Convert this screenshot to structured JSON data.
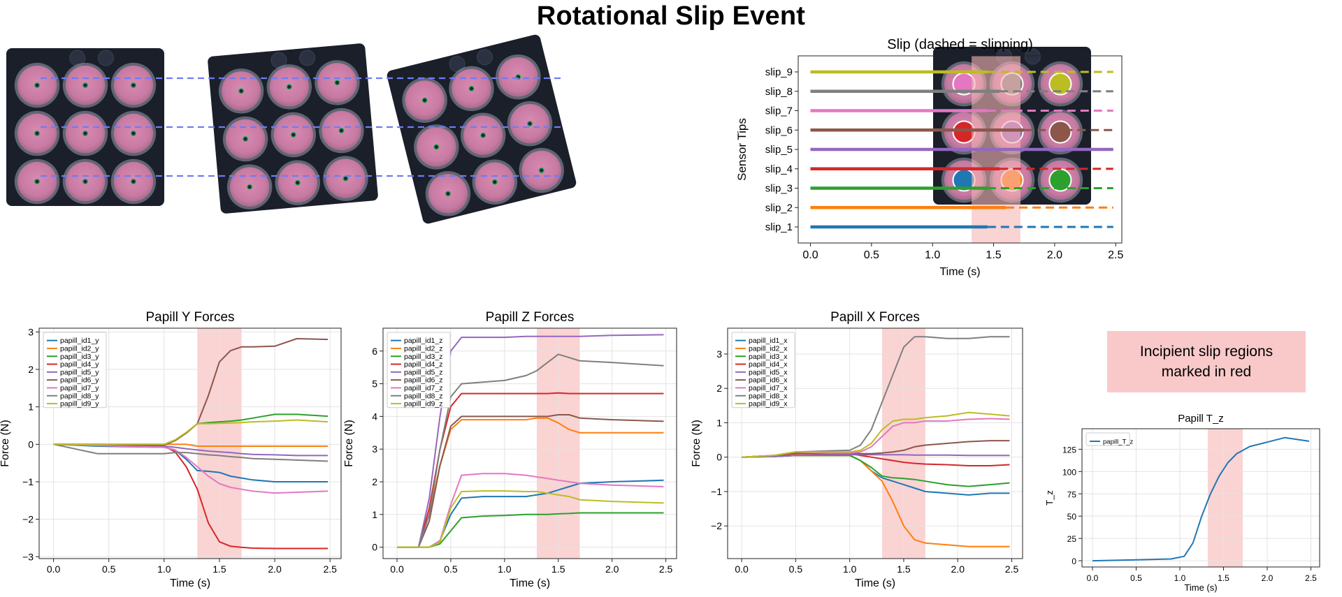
{
  "title": "Rotational Slip Event",
  "callout": {
    "line1": "Incipient slip regions",
    "line2": "marked in red"
  },
  "colors": {
    "tab": [
      "#1f77b4",
      "#ff7f0e",
      "#2ca02c",
      "#d62728",
      "#9467bd",
      "#8c564b",
      "#e377c2",
      "#7f7f7f",
      "#bcbd22"
    ],
    "slip_span": "#f7b5b5",
    "dashed_guide": "#6d7cf5",
    "pad": "#cf7ea6",
    "board": "#1a1f2a"
  },
  "chart_data": [
    {
      "id": "slip",
      "type": "line",
      "title": "Slip (dashed = slipping)",
      "xlabel": "Time (s)",
      "ylabel": "Sensor Tips",
      "xlim": [
        -0.1,
        2.55
      ],
      "xticks": [
        0.0,
        0.5,
        1.0,
        1.5,
        2.0,
        2.5
      ],
      "xtick_labels": [
        "0.0",
        "0.5",
        "1.0",
        "1.5",
        "2.0",
        "2.5"
      ],
      "categories": [
        "slip_1",
        "slip_2",
        "slip_3",
        "slip_4",
        "slip_5",
        "slip_6",
        "slip_7",
        "slip_8",
        "slip_9"
      ],
      "slip_start": [
        1.45,
        1.6,
        1.45,
        1.55,
        null,
        1.75,
        1.45,
        1.55,
        1.45
      ],
      "x_end": 2.48,
      "span": [
        1.32,
        1.72
      ],
      "grid": false
    },
    {
      "id": "fy",
      "type": "line",
      "title": "Papill Y Forces",
      "xlabel": "Time (s)",
      "ylabel": "Force (N)",
      "xlim": [
        -0.13,
        2.6
      ],
      "ylim": [
        -3.05,
        3.1
      ],
      "xticks": [
        0.0,
        0.5,
        1.0,
        1.5,
        2.0,
        2.5
      ],
      "xtick_labels": [
        "0.0",
        "0.5",
        "1.0",
        "1.5",
        "2.0",
        "2.5"
      ],
      "yticks": [
        -3,
        -2,
        -1,
        0,
        1,
        2,
        3
      ],
      "ytick_labels": [
        "−3",
        "−2",
        "−1",
        "0",
        "1",
        "2",
        "3"
      ],
      "span": [
        1.3,
        1.7
      ],
      "grid": true,
      "legend": "upper-left",
      "x": [
        0.0,
        0.4,
        1.0,
        1.1,
        1.2,
        1.3,
        1.4,
        1.5,
        1.6,
        1.7,
        1.8,
        2.0,
        2.2,
        2.48
      ],
      "series": [
        {
          "name": "papill_id1_y",
          "values": [
            0,
            -0.05,
            -0.08,
            -0.15,
            -0.4,
            -0.7,
            -0.72,
            -0.75,
            -0.85,
            -0.9,
            -0.95,
            -1.0,
            -1.0,
            -1.0
          ]
        },
        {
          "name": "papill_id2_y",
          "values": [
            0,
            0.0,
            0.0,
            0.0,
            0.0,
            -0.05,
            -0.05,
            -0.05,
            -0.05,
            -0.05,
            -0.05,
            -0.05,
            -0.05,
            -0.05
          ]
        },
        {
          "name": "papill_id3_y",
          "values": [
            0,
            0.0,
            -0.02,
            0.1,
            0.3,
            0.55,
            0.58,
            0.6,
            0.62,
            0.65,
            0.7,
            0.8,
            0.8,
            0.75
          ]
        },
        {
          "name": "papill_id4_y",
          "values": [
            0,
            -0.02,
            -0.05,
            -0.2,
            -0.6,
            -1.2,
            -2.1,
            -2.6,
            -2.72,
            -2.75,
            -2.77,
            -2.78,
            -2.78,
            -2.78
          ]
        },
        {
          "name": "papill_id5_y",
          "values": [
            0,
            -0.02,
            -0.05,
            -0.08,
            -0.12,
            -0.15,
            -0.18,
            -0.2,
            -0.22,
            -0.25,
            -0.27,
            -0.28,
            -0.3,
            -0.3
          ]
        },
        {
          "name": "papill_id6_y",
          "values": [
            0,
            -0.02,
            -0.02,
            0.1,
            0.3,
            0.55,
            1.3,
            2.2,
            2.5,
            2.6,
            2.6,
            2.62,
            2.82,
            2.8
          ]
        },
        {
          "name": "papill_id7_y",
          "values": [
            0,
            -0.03,
            -0.08,
            -0.15,
            -0.35,
            -0.6,
            -0.85,
            -1.05,
            -1.15,
            -1.2,
            -1.25,
            -1.3,
            -1.28,
            -1.25
          ]
        },
        {
          "name": "papill_id8_y",
          "values": [
            0,
            -0.25,
            -0.25,
            -0.22,
            -0.22,
            -0.25,
            -0.28,
            -0.3,
            -0.33,
            -0.35,
            -0.38,
            -0.4,
            -0.42,
            -0.45
          ]
        },
        {
          "name": "papill_id9_y",
          "values": [
            0,
            0.0,
            0.0,
            0.12,
            0.32,
            0.55,
            0.55,
            0.56,
            0.57,
            0.58,
            0.6,
            0.62,
            0.65,
            0.6
          ]
        }
      ]
    },
    {
      "id": "fz",
      "type": "line",
      "title": "Papill Z Forces",
      "xlabel": "Time (s)",
      "ylabel": "Force (N)",
      "xlim": [
        -0.13,
        2.6
      ],
      "ylim": [
        -0.35,
        6.7
      ],
      "xticks": [
        0.0,
        0.5,
        1.0,
        1.5,
        2.0,
        2.5
      ],
      "xtick_labels": [
        "0.0",
        "0.5",
        "1.0",
        "1.5",
        "2.0",
        "2.5"
      ],
      "yticks": [
        0,
        1,
        2,
        3,
        4,
        5,
        6
      ],
      "ytick_labels": [
        "0",
        "1",
        "2",
        "3",
        "4",
        "5",
        "6"
      ],
      "span": [
        1.3,
        1.7
      ],
      "grid": true,
      "legend": "upper-left",
      "x": [
        0.0,
        0.2,
        0.3,
        0.4,
        0.5,
        0.6,
        0.8,
        1.0,
        1.2,
        1.3,
        1.4,
        1.5,
        1.6,
        1.7,
        2.0,
        2.48
      ],
      "series": [
        {
          "name": "papill_id1_z",
          "values": [
            0,
            0,
            0,
            0.2,
            1.0,
            1.5,
            1.55,
            1.55,
            1.55,
            1.6,
            1.65,
            1.75,
            1.85,
            1.95,
            2.0,
            2.05
          ]
        },
        {
          "name": "papill_id2_z",
          "values": [
            0,
            0,
            1.0,
            2.5,
            3.6,
            3.9,
            3.9,
            3.9,
            3.9,
            3.95,
            3.95,
            3.8,
            3.6,
            3.5,
            3.5,
            3.5
          ]
        },
        {
          "name": "papill_id3_z",
          "values": [
            0,
            0,
            0,
            0.1,
            0.5,
            0.9,
            0.95,
            0.97,
            1.0,
            1.0,
            1.0,
            1.02,
            1.03,
            1.05,
            1.05,
            1.05
          ]
        },
        {
          "name": "papill_id4_z",
          "values": [
            0,
            0,
            1.2,
            3.0,
            4.3,
            4.7,
            4.7,
            4.7,
            4.7,
            4.7,
            4.7,
            4.72,
            4.7,
            4.7,
            4.7,
            4.7
          ]
        },
        {
          "name": "papill_id5_z",
          "values": [
            0,
            0,
            1.5,
            4.0,
            6.0,
            6.42,
            6.42,
            6.42,
            6.45,
            6.45,
            6.45,
            6.45,
            6.45,
            6.45,
            6.48,
            6.5
          ]
        },
        {
          "name": "papill_id6_z",
          "values": [
            0,
            0,
            0.8,
            2.5,
            3.7,
            4.0,
            4.0,
            4.0,
            4.0,
            4.0,
            4.0,
            4.05,
            4.05,
            3.95,
            3.9,
            3.85
          ]
        },
        {
          "name": "papill_id7_z",
          "values": [
            0,
            0,
            0,
            0.2,
            1.3,
            2.2,
            2.25,
            2.25,
            2.2,
            2.15,
            2.1,
            2.05,
            2.0,
            1.95,
            1.9,
            1.85
          ]
        },
        {
          "name": "papill_id8_z",
          "values": [
            0,
            0,
            1.0,
            3.0,
            4.6,
            5.0,
            5.05,
            5.1,
            5.25,
            5.4,
            5.65,
            5.9,
            5.8,
            5.7,
            5.65,
            5.55
          ]
        },
        {
          "name": "papill_id9_z",
          "values": [
            0,
            0,
            0,
            0.15,
            1.2,
            1.7,
            1.72,
            1.72,
            1.7,
            1.7,
            1.65,
            1.6,
            1.55,
            1.45,
            1.4,
            1.35
          ]
        }
      ]
    },
    {
      "id": "fx",
      "type": "line",
      "title": "Papill X Forces",
      "xlabel": "Time (s)",
      "ylabel": "Force (N)",
      "xlim": [
        -0.13,
        2.6
      ],
      "ylim": [
        -2.95,
        3.75
      ],
      "xticks": [
        0.0,
        0.5,
        1.0,
        1.5,
        2.0,
        2.5
      ],
      "xtick_labels": [
        "0.0",
        "0.5",
        "1.0",
        "1.5",
        "2.0",
        "2.5"
      ],
      "yticks": [
        -2,
        -1,
        0,
        1,
        2,
        3
      ],
      "ytick_labels": [
        "−2",
        "−1",
        "0",
        "1",
        "2",
        "3"
      ],
      "span": [
        1.3,
        1.7
      ],
      "grid": true,
      "legend": "upper-left",
      "x": [
        0.0,
        0.3,
        0.5,
        0.8,
        1.0,
        1.1,
        1.2,
        1.3,
        1.4,
        1.5,
        1.6,
        1.7,
        1.9,
        2.1,
        2.3,
        2.48
      ],
      "series": [
        {
          "name": "papill_id1_x",
          "values": [
            0,
            0.02,
            0.05,
            0.05,
            0.05,
            -0.1,
            -0.4,
            -0.6,
            -0.7,
            -0.8,
            -0.9,
            -1.0,
            -1.05,
            -1.1,
            -1.05,
            -1.05
          ]
        },
        {
          "name": "papill_id2_x",
          "values": [
            0,
            0.02,
            0.05,
            0.05,
            0.05,
            -0.1,
            -0.4,
            -0.7,
            -1.3,
            -2.0,
            -2.4,
            -2.5,
            -2.55,
            -2.6,
            -2.6,
            -2.6
          ]
        },
        {
          "name": "papill_id3_x",
          "values": [
            0,
            0.02,
            0.05,
            0.05,
            0.05,
            -0.1,
            -0.3,
            -0.55,
            -0.6,
            -0.62,
            -0.65,
            -0.7,
            -0.8,
            -0.85,
            -0.8,
            -0.75
          ]
        },
        {
          "name": "papill_id4_x",
          "values": [
            0,
            0.05,
            0.1,
            0.1,
            0.1,
            0.05,
            0.0,
            -0.05,
            -0.1,
            -0.15,
            -0.18,
            -0.2,
            -0.22,
            -0.25,
            -0.25,
            -0.22
          ]
        },
        {
          "name": "papill_id5_x",
          "values": [
            0,
            0.02,
            0.05,
            0.07,
            0.07,
            0.07,
            0.07,
            0.07,
            0.07,
            0.07,
            0.06,
            0.06,
            0.06,
            0.05,
            0.05,
            0.05
          ]
        },
        {
          "name": "papill_id6_x",
          "values": [
            0,
            0.05,
            0.12,
            0.12,
            0.12,
            0.1,
            0.1,
            0.12,
            0.15,
            0.2,
            0.3,
            0.35,
            0.4,
            0.45,
            0.48,
            0.48
          ]
        },
        {
          "name": "papill_id7_x",
          "values": [
            0,
            0.05,
            0.15,
            0.12,
            0.12,
            0.15,
            0.3,
            0.6,
            0.9,
            1.0,
            1.0,
            1.05,
            1.05,
            1.1,
            1.12,
            1.1
          ]
        },
        {
          "name": "papill_id8_x",
          "values": [
            0,
            0.05,
            0.15,
            0.18,
            0.2,
            0.35,
            0.8,
            1.6,
            2.4,
            3.2,
            3.5,
            3.5,
            3.45,
            3.45,
            3.5,
            3.5
          ]
        },
        {
          "name": "papill_id9_x",
          "values": [
            0,
            0.05,
            0.15,
            0.15,
            0.15,
            0.2,
            0.4,
            0.8,
            1.05,
            1.1,
            1.1,
            1.15,
            1.2,
            1.3,
            1.25,
            1.2
          ]
        }
      ]
    },
    {
      "id": "tz",
      "type": "line",
      "title": "Papill T_z",
      "xlabel": "Time (s)",
      "ylabel": "T_z",
      "xlim": [
        -0.12,
        2.6
      ],
      "ylim": [
        -7,
        148
      ],
      "xticks": [
        0.0,
        0.5,
        1.0,
        1.5,
        2.0,
        2.5
      ],
      "xtick_labels": [
        "0.0",
        "0.5",
        "1.0",
        "1.5",
        "2.0",
        "2.5"
      ],
      "yticks": [
        0,
        25,
        50,
        75,
        100,
        125
      ],
      "ytick_labels": [
        "0",
        "25",
        "50",
        "75",
        "100",
        "125"
      ],
      "span": [
        1.32,
        1.72
      ],
      "grid": true,
      "legend": "upper-left",
      "x": [
        0.0,
        0.5,
        0.9,
        1.05,
        1.15,
        1.25,
        1.35,
        1.45,
        1.55,
        1.65,
        1.8,
        2.0,
        2.2,
        2.48
      ],
      "series": [
        {
          "name": "papill_T_z",
          "values": [
            0,
            1,
            2,
            5,
            20,
            50,
            75,
            95,
            110,
            120,
            128,
            133,
            138,
            134
          ]
        }
      ]
    }
  ]
}
